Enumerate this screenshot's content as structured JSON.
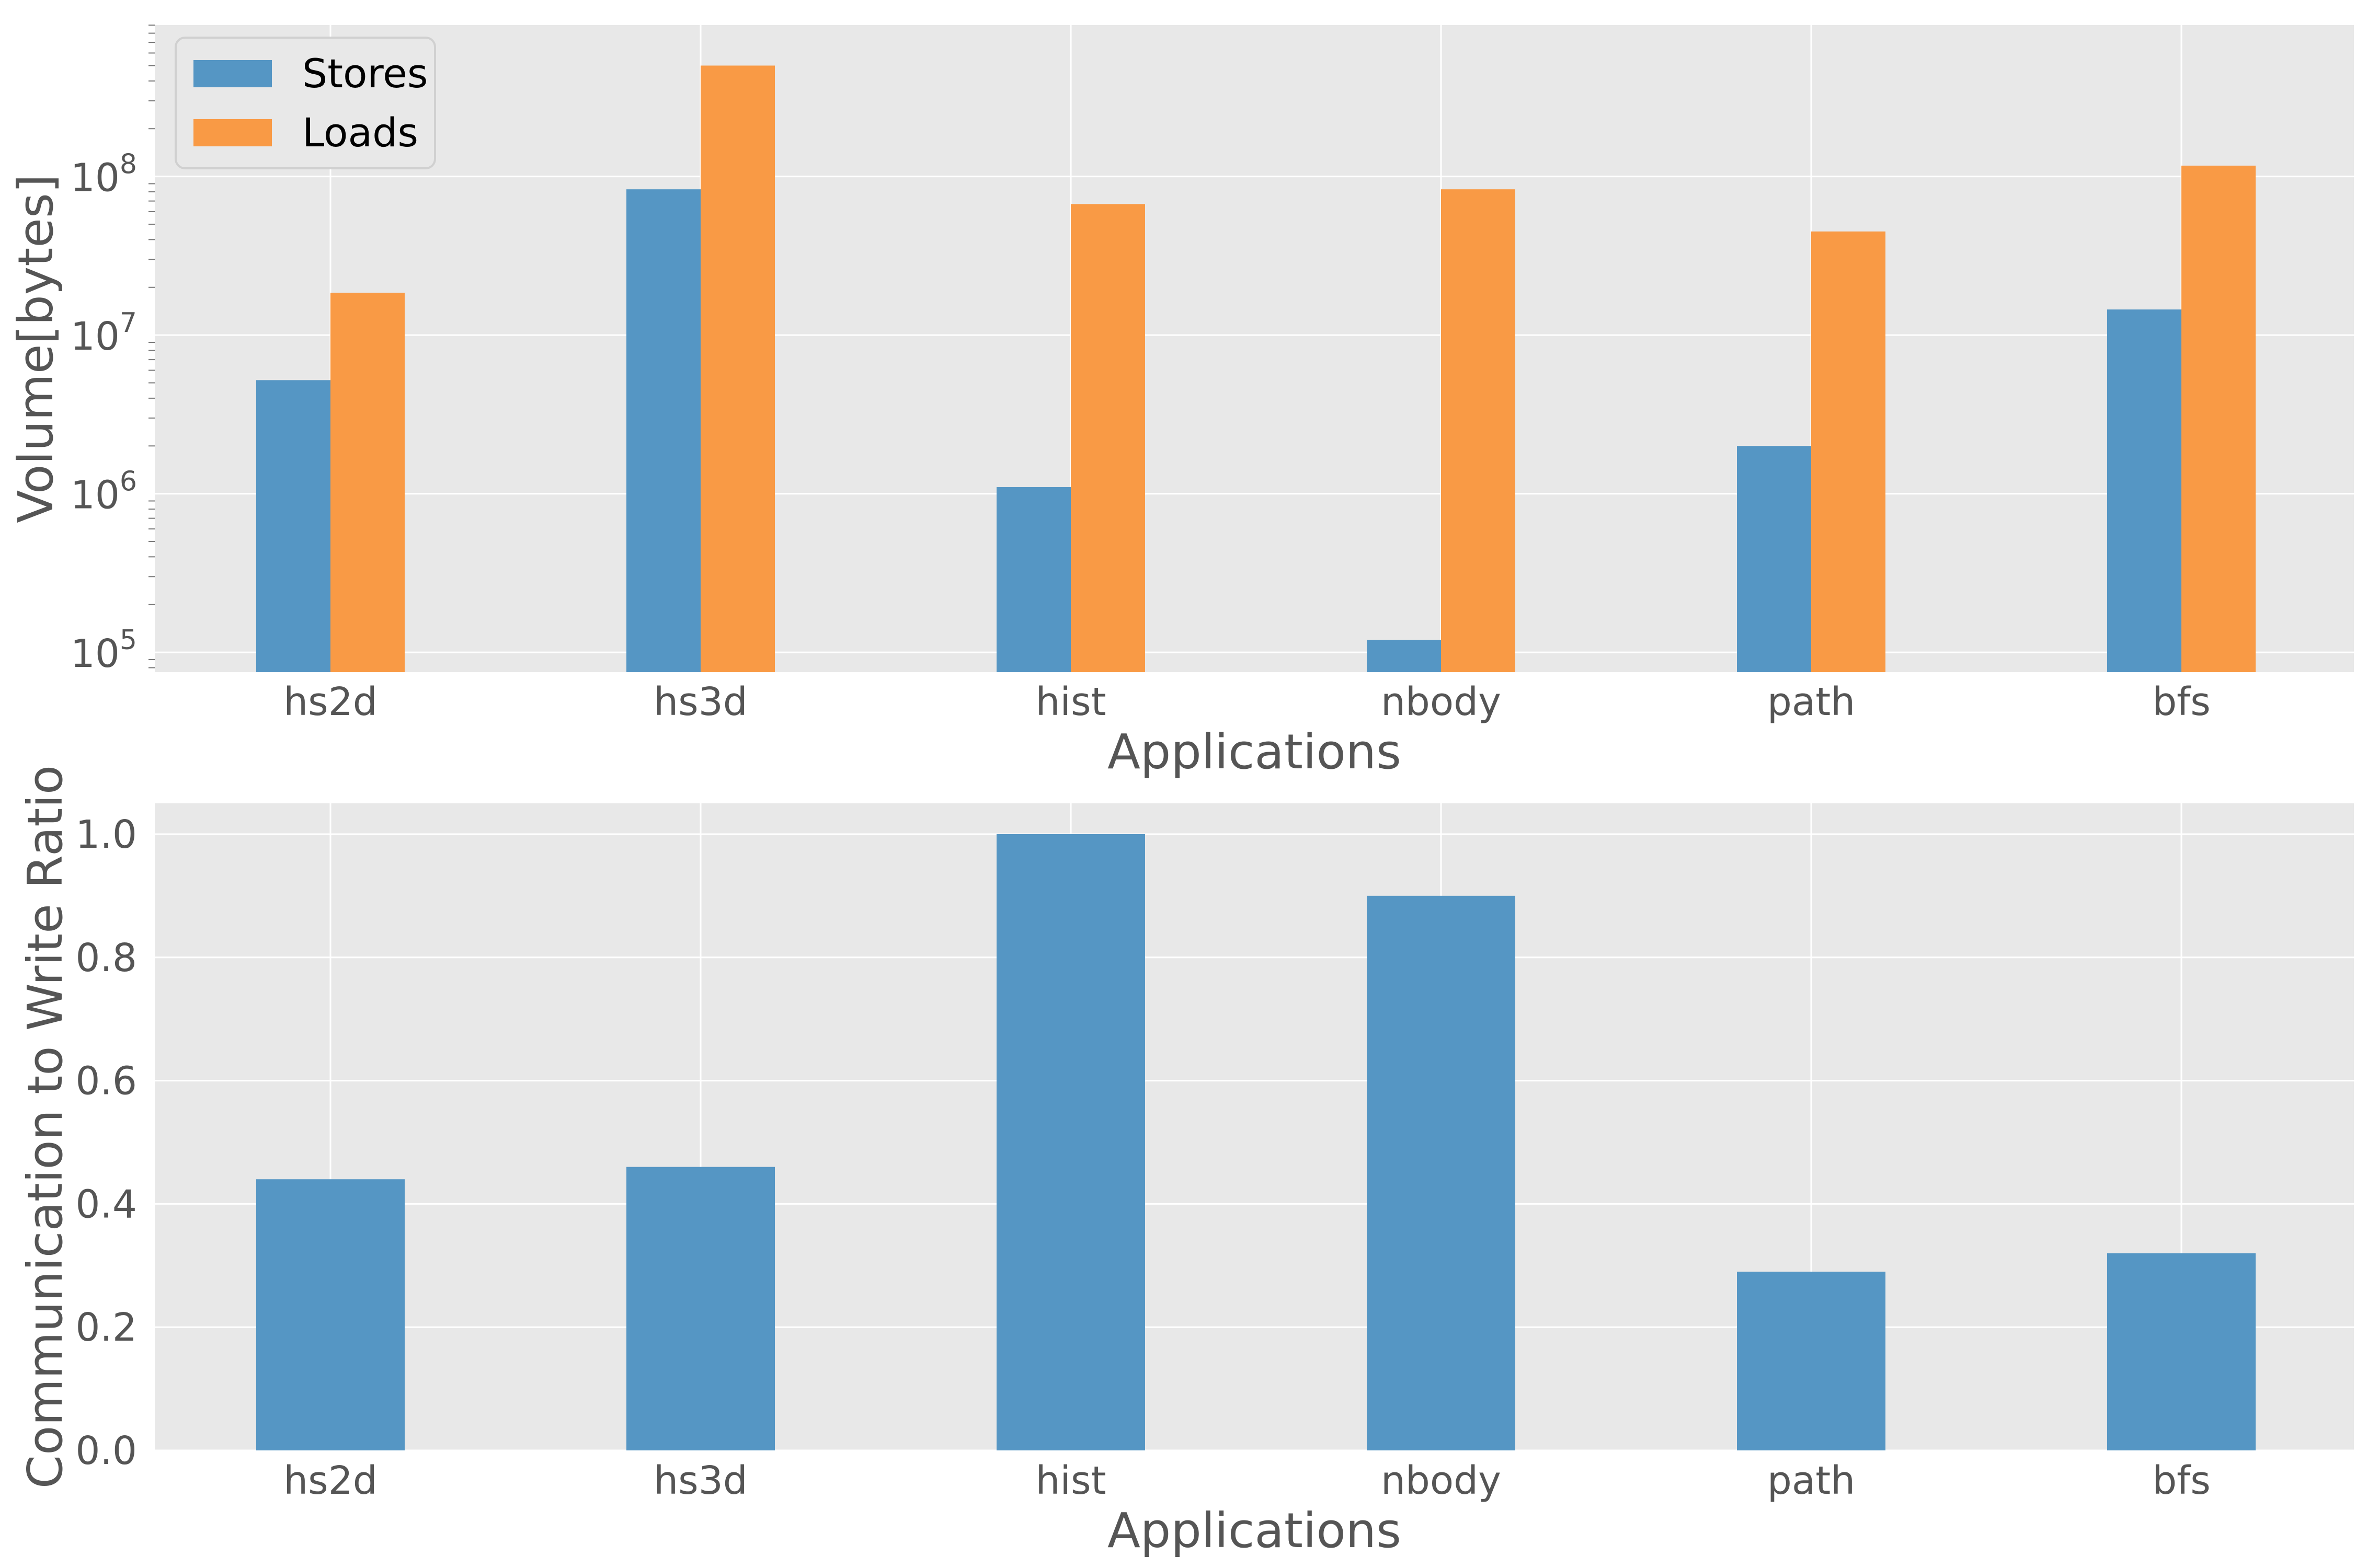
{
  "chart_data": [
    {
      "type": "bar",
      "categories": [
        "hs2d",
        "hs3d",
        "hist",
        "nbody",
        "path",
        "bfs"
      ],
      "series": [
        {
          "name": "Stores",
          "values": [
            5200000,
            83000000,
            1100000,
            120000,
            2000000,
            14500000
          ]
        },
        {
          "name": "Loads",
          "values": [
            18500000,
            500000000,
            67000000,
            83000000,
            45000000,
            117000000
          ]
        }
      ],
      "xlabel": "Applications",
      "ylabel": "Volume[bytes]",
      "yscale": "log",
      "ylim": [
        75000,
        900000000
      ],
      "yticks": [
        {
          "base": "10",
          "exp": "5",
          "value": 100000
        },
        {
          "base": "10",
          "exp": "6",
          "value": 1000000
        },
        {
          "base": "10",
          "exp": "7",
          "value": 10000000
        },
        {
          "base": "10",
          "exp": "8",
          "value": 100000000
        }
      ],
      "grid": true,
      "legend_position": "top-left"
    },
    {
      "type": "bar",
      "categories": [
        "hs2d",
        "hs3d",
        "hist",
        "nbody",
        "path",
        "bfs"
      ],
      "series": [
        {
          "values": [
            0.44,
            0.46,
            1.0,
            0.9,
            0.29,
            0.32
          ]
        }
      ],
      "xlabel": "Applications",
      "ylabel": "Communication to Write Ratio",
      "ylim": [
        0,
        1.05
      ],
      "yticks": [
        "0.0",
        "0.2",
        "0.4",
        "0.6",
        "0.8",
        "1.0"
      ],
      "grid": true
    }
  ],
  "colors": {
    "stores": "#5596c4",
    "loads": "#f99a45",
    "plot_background": "#e8e8e8",
    "grid": "#ffffff",
    "text": "#555555"
  }
}
